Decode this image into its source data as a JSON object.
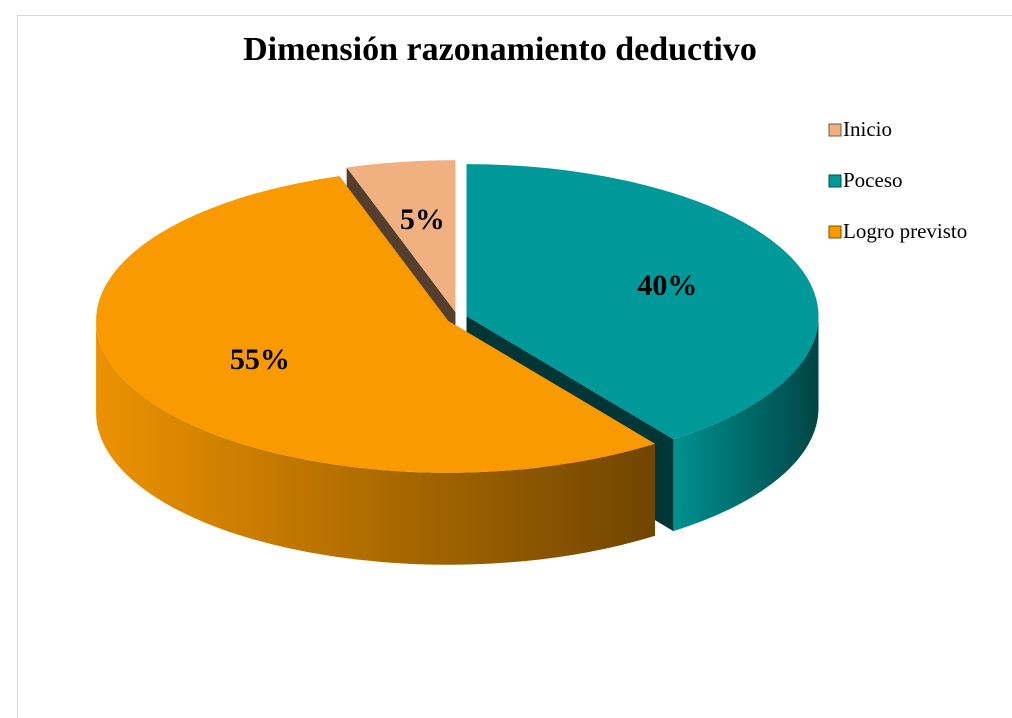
{
  "chart_data": {
    "type": "pie",
    "title": "Dimensión razonamiento deductivo",
    "categories": [
      "Inicio",
      "Poceso",
      "Logro previsto"
    ],
    "values": [
      5,
      40,
      55
    ],
    "value_labels": [
      "5%",
      "40%",
      "55%"
    ],
    "colors": [
      "#f0b080",
      "#009999",
      "#f89a00"
    ],
    "legend": "right"
  }
}
